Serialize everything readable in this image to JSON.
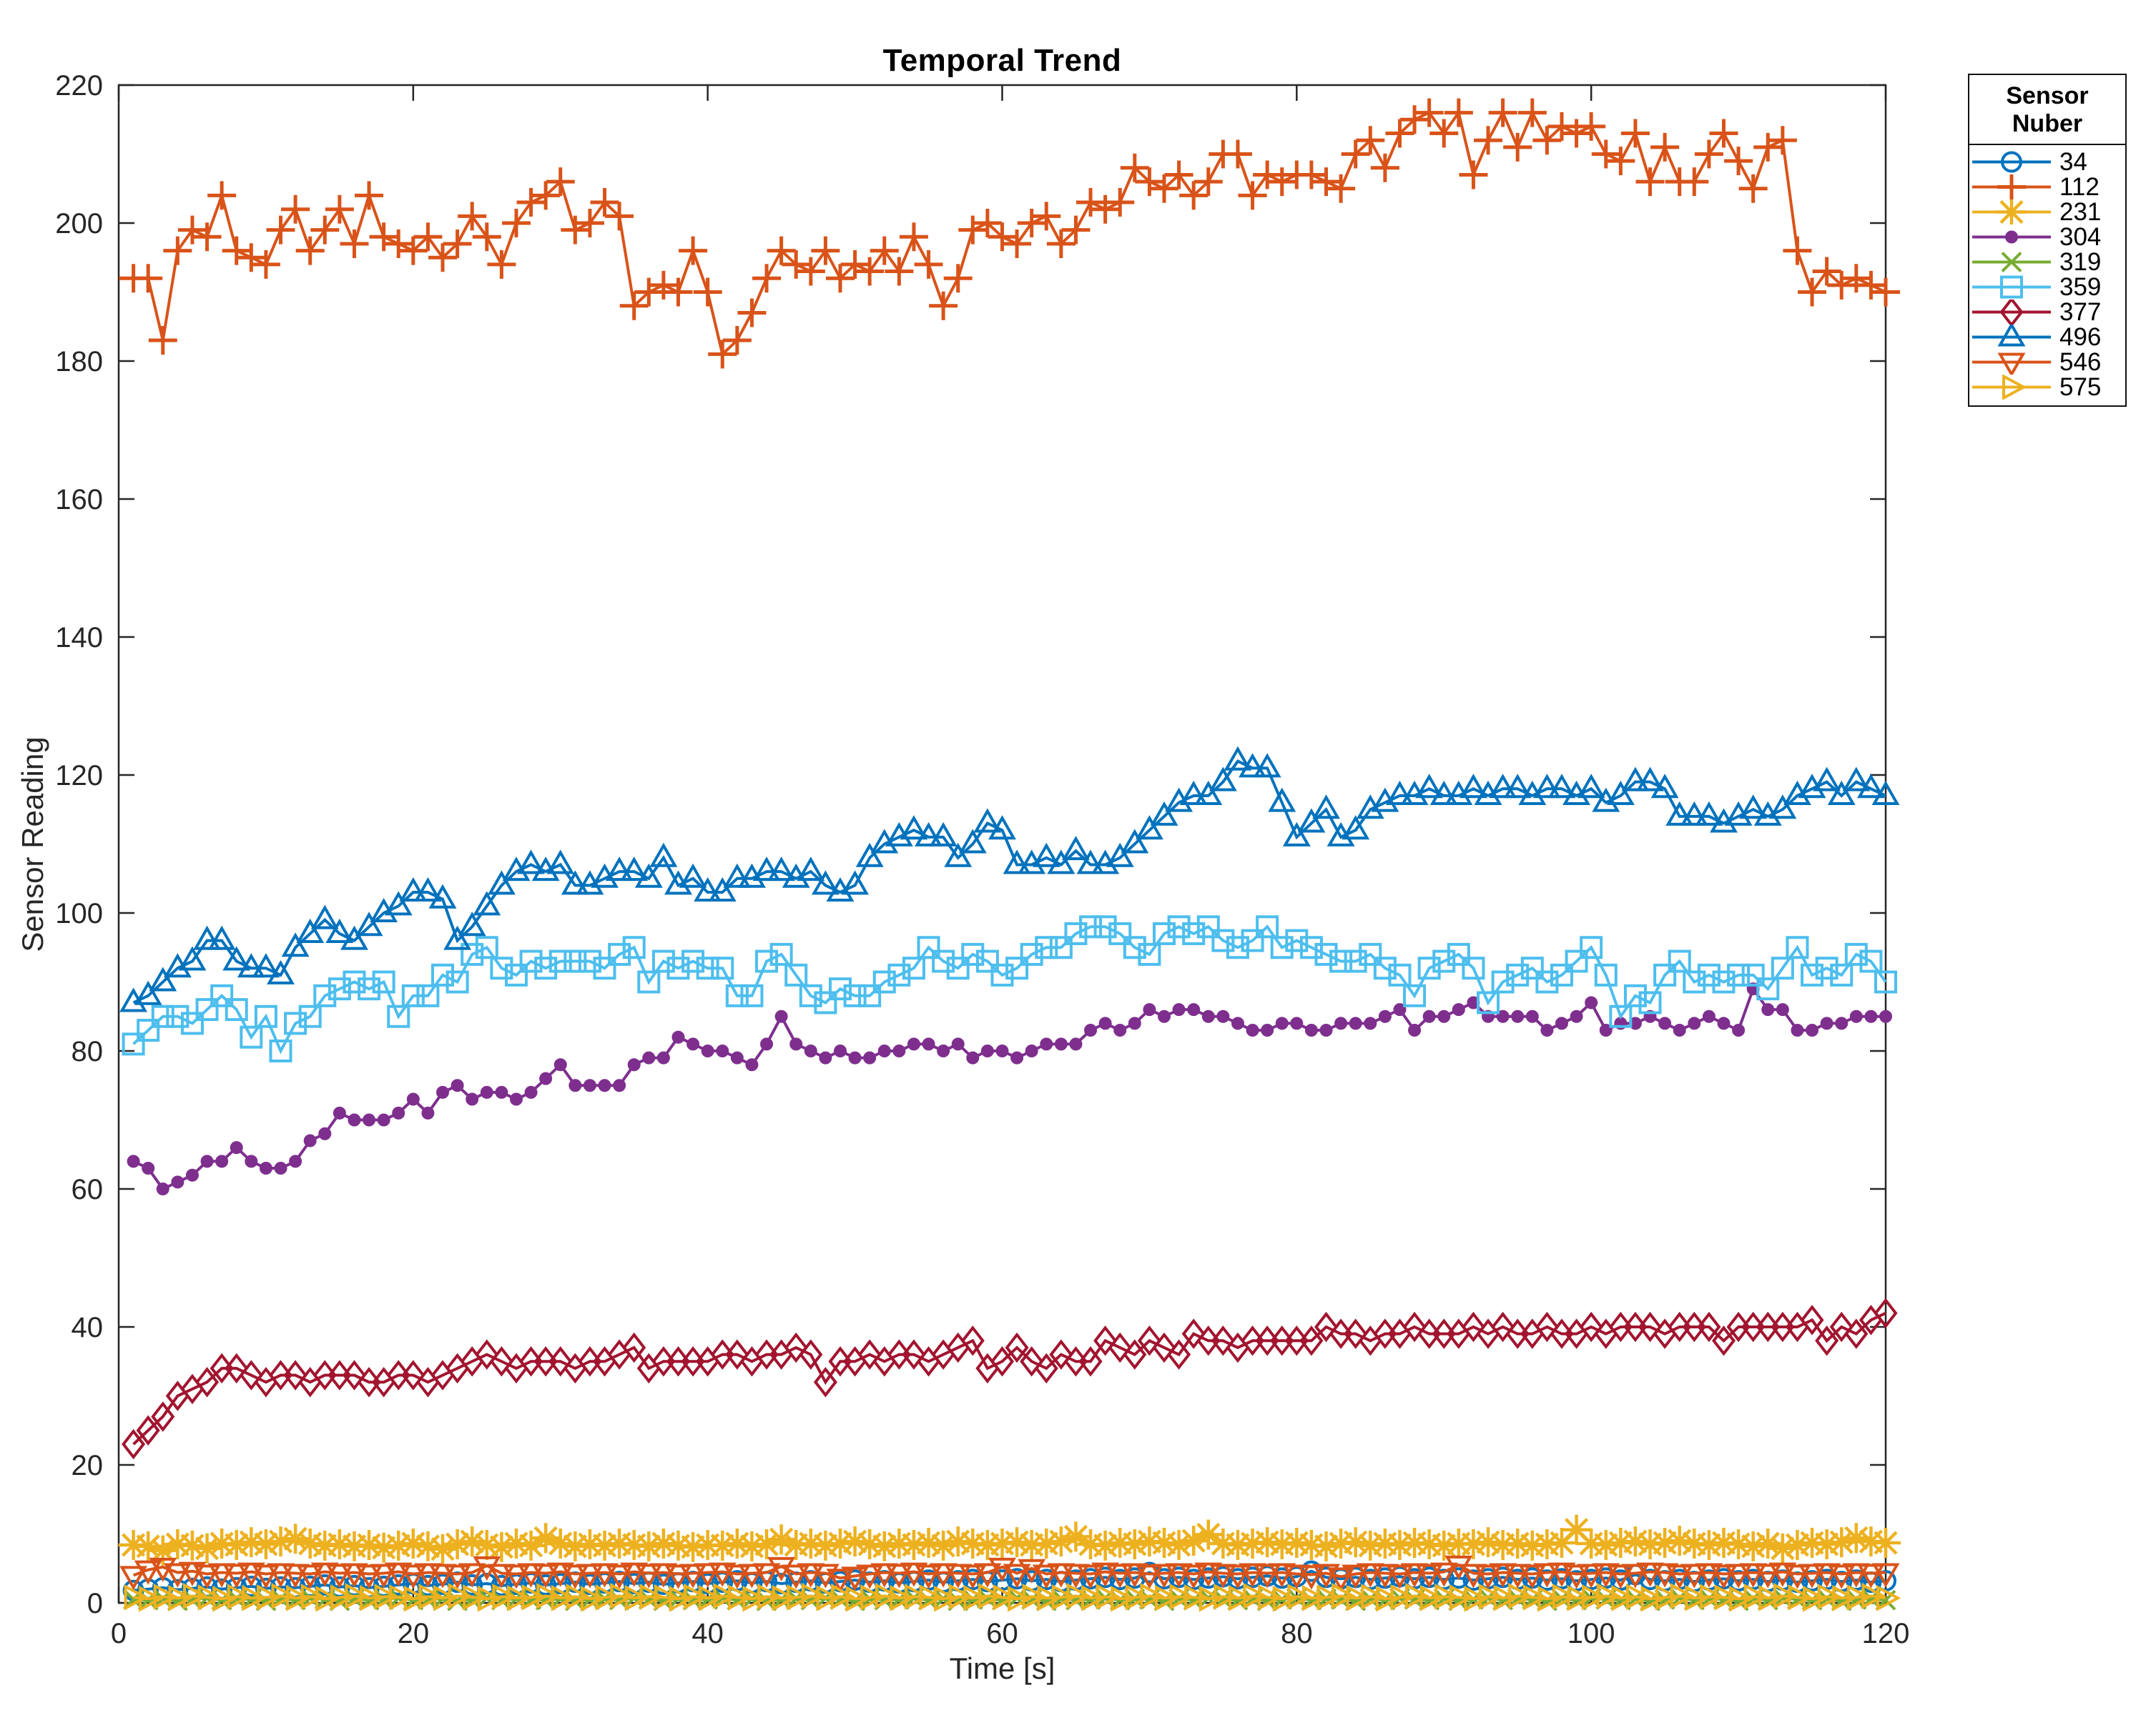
{
  "figure": {
    "title": "Temporal Trend",
    "x_label": "Time [s]",
    "y_label": "Sensor Reading",
    "legend_title": "Sensor Nuber"
  },
  "style": {
    "axis_color": "#262626",
    "background": "#ffffff"
  },
  "chart_data": {
    "type": "line",
    "title": "Temporal Trend",
    "xlabel": "Time [s]",
    "ylabel": "Sensor Reading",
    "xlim": [
      0,
      120
    ],
    "ylim": [
      0,
      220
    ],
    "xticks": [
      0,
      20,
      40,
      60,
      80,
      100,
      120
    ],
    "yticks": [
      0,
      20,
      40,
      60,
      80,
      100,
      120,
      140,
      160,
      180,
      200,
      220
    ],
    "grid": false,
    "legend_title": "Sensor Nuber",
    "legend_position": "outside-right",
    "x_values": {
      "start": 1,
      "step": 1,
      "count": 120
    },
    "series": [
      {
        "name": "34",
        "color": "#0072BD",
        "marker": "circle",
        "values": [
          1.8,
          2.0,
          2.2,
          1.9,
          2.1,
          2.3,
          2.0,
          2.2,
          2.4,
          2.1,
          2.3,
          2.2,
          2.4,
          2.6,
          2.3,
          2.5,
          2.2,
          2.4,
          2.6,
          2.8,
          2.5,
          2.7,
          3.0,
          2.6,
          2.8,
          2.5,
          2.7,
          2.9,
          2.6,
          2.8,
          3.0,
          2.7,
          2.9,
          3.1,
          2.8,
          3.0,
          2.7,
          2.9,
          3.1,
          2.8,
          3.0,
          3.2,
          2.9,
          3.1,
          2.8,
          3.0,
          3.2,
          2.9,
          3.1,
          3.3,
          3.0,
          3.2,
          2.9,
          3.1,
          3.3,
          3.0,
          3.2,
          3.4,
          3.1,
          3.3,
          3.5,
          3.2,
          3.4,
          3.1,
          3.3,
          3.5,
          3.7,
          3.4,
          3.6,
          4.4,
          3.5,
          3.7,
          3.4,
          3.6,
          3.8,
          3.5,
          3.7,
          3.9,
          3.6,
          3.8,
          4.6,
          3.7,
          3.5,
          3.7,
          3.4,
          3.6,
          3.8,
          3.5,
          3.7,
          3.4,
          3.6,
          3.3,
          3.5,
          3.7,
          3.4,
          3.6,
          3.3,
          3.5,
          3.2,
          3.4,
          3.6,
          3.3,
          4.1,
          3.4,
          3.2,
          3.4,
          3.1,
          3.3,
          3.5,
          3.2,
          3.4,
          3.1,
          3.3,
          3.0,
          3.2,
          3.4,
          3.1,
          3.3,
          3.0,
          3.2
        ]
      },
      {
        "name": "112",
        "color": "#D95319",
        "marker": "plus",
        "values": [
          192,
          192,
          183,
          196,
          199,
          198,
          204,
          196,
          195,
          194,
          199,
          202,
          196,
          199,
          202,
          197,
          204,
          198,
          197,
          196,
          198,
          195,
          197,
          201,
          198,
          194,
          200,
          203,
          204,
          206,
          199,
          200,
          203,
          201,
          188,
          190,
          191,
          190,
          196,
          190,
          181,
          183,
          187,
          192,
          196,
          194,
          193,
          196,
          192,
          194,
          193,
          196,
          193,
          198,
          194,
          188,
          192,
          199,
          200,
          198,
          197,
          200,
          201,
          197,
          199,
          203,
          202,
          203,
          208,
          206,
          205,
          207,
          204,
          206,
          210,
          210,
          204,
          207,
          206,
          207,
          207,
          206,
          205,
          210,
          212,
          208,
          213,
          215,
          216,
          213,
          216,
          207,
          212,
          216,
          211,
          216,
          212,
          214,
          213,
          214,
          210,
          209,
          213,
          206,
          211,
          206,
          206,
          210,
          213,
          209,
          205,
          211,
          212,
          196,
          190,
          193,
          191,
          192,
          191,
          190
        ]
      },
      {
        "name": "231",
        "color": "#EDB120",
        "marker": "asterisk",
        "values": [
          8.4,
          8.2,
          7.6,
          8.5,
          8.3,
          7.9,
          8.6,
          8.4,
          8.8,
          8.5,
          8.9,
          9.3,
          8.6,
          8.3,
          8.5,
          8.2,
          8.4,
          8.0,
          8.3,
          8.6,
          8.2,
          7.8,
          8.5,
          8.9,
          8.4,
          8.1,
          8.6,
          8.3,
          9.4,
          8.6,
          8.2,
          8.5,
          8.3,
          8.6,
          8.4,
          8.2,
          8.6,
          8.3,
          8.1,
          8.4,
          8.3,
          8.6,
          8.2,
          8.5,
          9.2,
          8.4,
          8.6,
          8.3,
          8.6,
          8.9,
          8.5,
          8.2,
          8.6,
          8.4,
          8.7,
          8.3,
          8.9,
          8.6,
          8.4,
          8.6,
          8.8,
          8.4,
          8.6,
          8.9,
          9.6,
          8.5,
          8.3,
          8.7,
          8.5,
          8.9,
          8.7,
          8.4,
          9.0,
          9.9,
          8.6,
          8.4,
          8.6,
          8.8,
          8.5,
          8.7,
          8.4,
          8.2,
          8.6,
          8.8,
          8.3,
          8.6,
          8.4,
          8.7,
          8.5,
          8.3,
          8.6,
          8.5,
          8.8,
          8.4,
          8.6,
          8.3,
          8.5,
          8.7,
          10.6,
          8.6,
          8.4,
          8.7,
          8.9,
          8.5,
          8.7,
          9.0,
          8.6,
          8.4,
          8.7,
          8.5,
          8.2,
          8.6,
          7.9,
          8.4,
          8.7,
          8.5,
          8.8,
          9.4,
          8.9,
          8.7
        ]
      },
      {
        "name": "304",
        "color": "#7E2F8E",
        "marker": "point",
        "values": [
          64,
          63,
          60,
          61,
          62,
          64,
          64,
          66,
          64,
          63,
          63,
          64,
          67,
          68,
          71,
          70,
          70,
          70,
          71,
          73,
          71,
          74,
          75,
          73,
          74,
          74,
          73,
          74,
          76,
          78,
          75,
          75,
          75,
          75,
          78,
          79,
          79,
          82,
          81,
          80,
          80,
          79,
          78,
          81,
          85,
          81,
          80,
          79,
          80,
          79,
          79,
          80,
          80,
          81,
          81,
          80,
          81,
          79,
          80,
          80,
          79,
          80,
          81,
          81,
          81,
          83,
          84,
          83,
          84,
          86,
          85,
          86,
          86,
          85,
          85,
          84,
          83,
          83,
          84,
          84,
          83,
          83,
          84,
          84,
          84,
          85,
          86,
          83,
          85,
          85,
          86,
          87,
          85,
          85,
          85,
          85,
          83,
          84,
          85,
          87,
          83,
          84,
          84,
          85,
          84,
          83,
          84,
          85,
          84,
          83,
          89,
          86,
          86,
          83,
          83,
          84,
          84,
          85,
          85,
          85
        ]
      },
      {
        "name": "319",
        "color": "#77AC30",
        "marker": "x",
        "values": [
          0.5,
          0.4,
          0.6,
          0.3,
          0.5,
          0.7,
          0.4,
          0.6,
          0.5,
          0.3,
          0.6,
          0.4,
          0.7,
          0.5,
          0.3,
          0.6,
          0.4,
          0.5,
          0.7,
          0.4,
          0.5,
          0.6,
          0.3,
          0.5,
          0.7,
          0.4,
          0.6,
          0.5,
          0.4,
          0.6,
          0.3,
          0.5,
          0.6,
          0.4,
          0.7,
          0.5,
          0.3,
          0.6,
          0.4,
          0.5,
          0.7,
          0.4,
          0.6,
          0.3,
          0.5,
          0.6,
          0.4,
          0.7,
          0.5,
          0.3,
          0.6,
          0.4,
          0.5,
          0.7,
          0.4,
          0.6,
          0.3,
          0.5,
          0.6,
          0.4,
          0.7,
          0.5,
          0.3,
          0.6,
          0.4,
          0.5,
          0.7,
          0.4,
          0.6,
          0.5,
          0.3,
          0.6,
          0.4,
          0.7,
          0.5,
          0.4,
          0.6,
          0.3,
          0.5,
          0.7,
          0.4,
          0.6,
          0.5,
          0.3,
          0.6,
          0.4,
          0.7,
          0.5,
          0.4,
          0.6,
          0.3,
          0.5,
          0.7,
          0.4,
          0.6,
          0.5,
          0.3,
          0.6,
          0.4,
          0.7,
          0.5,
          0.4,
          0.6,
          0.3,
          0.5,
          0.7,
          0.4,
          0.6,
          0.5,
          0.3,
          0.6,
          0.4,
          0.7,
          0.5,
          0.4,
          0.6,
          0.3,
          0.5,
          0.6,
          0.4
        ]
      },
      {
        "name": "359",
        "color": "#4DBEEE",
        "marker": "square",
        "values": [
          81,
          83,
          85,
          85,
          84,
          86,
          88,
          86,
          82,
          85,
          80,
          84,
          85,
          88,
          89,
          90,
          89,
          90,
          85,
          88,
          88,
          91,
          90,
          94,
          95,
          92,
          91,
          93,
          92,
          93,
          93,
          93,
          92,
          94,
          95,
          90,
          93,
          92,
          93,
          92,
          92,
          88,
          88,
          93,
          94,
          91,
          88,
          87,
          89,
          88,
          88,
          90,
          91,
          92,
          95,
          93,
          92,
          94,
          93,
          91,
          92,
          94,
          95,
          95,
          97,
          98,
          98,
          97,
          95,
          94,
          97,
          98,
          97,
          98,
          96,
          95,
          96,
          98,
          95,
          96,
          95,
          94,
          93,
          93,
          94,
          92,
          91,
          88,
          92,
          93,
          94,
          92,
          87,
          90,
          91,
          92,
          90,
          91,
          93,
          95,
          91,
          85,
          88,
          87,
          91,
          93,
          90,
          91,
          90,
          91,
          91,
          89,
          92,
          95,
          91,
          92,
          91,
          94,
          93,
          90
        ]
      },
      {
        "name": "377",
        "color": "#A2142F",
        "marker": "diamond",
        "values": [
          23,
          25,
          27,
          30,
          31,
          32,
          34,
          34,
          33,
          32,
          33,
          33,
          32,
          33,
          33,
          33,
          32,
          32,
          33,
          33,
          32,
          33,
          34,
          35,
          36,
          35,
          34,
          35,
          35,
          35,
          34,
          35,
          35,
          36,
          37,
          34,
          35,
          35,
          35,
          35,
          36,
          36,
          35,
          36,
          36,
          37,
          36,
          32,
          35,
          35,
          36,
          35,
          36,
          36,
          35,
          36,
          37,
          38,
          34,
          35,
          37,
          35,
          34,
          36,
          35,
          35,
          38,
          37,
          36,
          38,
          37,
          36,
          39,
          38,
          38,
          37,
          38,
          38,
          38,
          38,
          38,
          40,
          39,
          39,
          38,
          39,
          39,
          40,
          39,
          39,
          39,
          40,
          39,
          40,
          39,
          39,
          40,
          39,
          39,
          40,
          39,
          40,
          40,
          40,
          39,
          40,
          40,
          40,
          38,
          40,
          40,
          40,
          40,
          40,
          41,
          38,
          40,
          39,
          41,
          42
        ]
      },
      {
        "name": "496",
        "color": "#0072BD",
        "marker": "triangle-up",
        "values": [
          87,
          88,
          90,
          92,
          93,
          96,
          96,
          93,
          92,
          92,
          91,
          95,
          97,
          99,
          97,
          96,
          98,
          100,
          101,
          103,
          103,
          102,
          96,
          98,
          101,
          104,
          106,
          107,
          106,
          107,
          104,
          104,
          105,
          106,
          106,
          105,
          108,
          104,
          105,
          103,
          103,
          105,
          105,
          106,
          106,
          105,
          106,
          104,
          103,
          104,
          108,
          110,
          111,
          112,
          111,
          111,
          108,
          110,
          113,
          112,
          107,
          107,
          108,
          107,
          109,
          107,
          107,
          108,
          110,
          112,
          114,
          116,
          117,
          117,
          119,
          122,
          121,
          121,
          116,
          111,
          113,
          115,
          111,
          112,
          115,
          116,
          117,
          117,
          118,
          117,
          117,
          118,
          117,
          118,
          118,
          117,
          118,
          118,
          117,
          118,
          116,
          117,
          119,
          119,
          118,
          114,
          114,
          114,
          113,
          114,
          115,
          114,
          115,
          117,
          118,
          119,
          117,
          119,
          118,
          117
        ]
      },
      {
        "name": "546",
        "color": "#D95319",
        "marker": "triangle-down",
        "values": [
          4.0,
          4.8,
          5.2,
          4.4,
          4.6,
          4.2,
          4.4,
          4.3,
          4.5,
          4.2,
          4.4,
          4.3,
          4.2,
          4.5,
          4.3,
          4.4,
          4.2,
          4.3,
          4.5,
          4.2,
          4.4,
          4.3,
          4.2,
          4.4,
          5.4,
          4.3,
          4.2,
          4.4,
          4.3,
          4.5,
          4.2,
          4.3,
          4.4,
          4.2,
          4.5,
          4.3,
          4.4,
          4.2,
          4.3,
          4.4,
          4.5,
          4.2,
          4.3,
          4.4,
          5.3,
          4.2,
          4.4,
          4.3,
          3.6,
          3.9,
          4.2,
          4.4,
          4.3,
          4.5,
          4.2,
          4.4,
          4.3,
          4.2,
          4.4,
          5.2,
          4.3,
          5.0,
          4.2,
          4.4,
          4.3,
          4.2,
          4.5,
          4.3,
          4.4,
          4.2,
          4.3,
          4.4,
          4.2,
          4.5,
          4.3,
          4.2,
          4.4,
          4.3,
          4.4,
          4.2,
          4.1,
          4.3,
          3.8,
          4.2,
          4.4,
          4.3,
          4.2,
          4.4,
          4.3,
          4.5,
          5.5,
          4.3,
          4.2,
          4.4,
          4.3,
          4.2,
          4.4,
          4.5,
          4.2,
          4.3,
          4.4,
          4.2,
          4.3,
          4.5,
          4.4,
          4.2,
          4.3,
          4.4,
          4.2,
          4.3,
          4.4,
          4.3,
          4.5,
          4.2,
          4.3,
          4.4,
          4.2,
          4.4,
          4.3,
          4.4
        ]
      },
      {
        "name": "575",
        "color": "#EDB120",
        "marker": "triangle-right",
        "values": [
          0.8,
          0.6,
          0.9,
          0.7,
          1.0,
          0.8,
          0.6,
          0.9,
          0.7,
          0.8,
          1.0,
          0.7,
          0.9,
          0.6,
          0.8,
          1.0,
          0.7,
          0.9,
          0.8,
          0.6,
          0.9,
          0.7,
          1.0,
          0.8,
          0.6,
          0.9,
          0.7,
          0.8,
          1.0,
          0.7,
          0.9,
          0.6,
          0.8,
          1.0,
          0.7,
          0.9,
          0.8,
          0.6,
          0.9,
          0.7,
          1.0,
          0.8,
          0.6,
          0.9,
          0.7,
          0.8,
          1.0,
          0.7,
          0.9,
          0.6,
          0.8,
          1.0,
          0.7,
          0.9,
          0.8,
          0.6,
          0.9,
          0.7,
          1.0,
          0.8,
          0.6,
          0.9,
          0.7,
          0.8,
          1.0,
          0.7,
          0.9,
          0.6,
          0.8,
          1.0,
          0.7,
          0.9,
          0.8,
          0.6,
          0.9,
          0.7,
          1.0,
          0.8,
          0.6,
          0.9,
          0.7,
          0.8,
          1.0,
          0.7,
          0.9,
          0.6,
          0.8,
          1.0,
          0.7,
          0.9,
          0.8,
          0.6,
          0.9,
          0.7,
          1.0,
          0.8,
          0.6,
          0.9,
          0.7,
          0.8,
          1.0,
          0.7,
          0.9,
          0.6,
          0.8,
          1.0,
          0.7,
          0.9,
          0.8,
          0.6,
          0.9,
          0.7,
          1.0,
          0.8,
          0.6,
          0.9,
          0.7,
          0.8,
          1.0,
          0.7
        ]
      }
    ]
  }
}
